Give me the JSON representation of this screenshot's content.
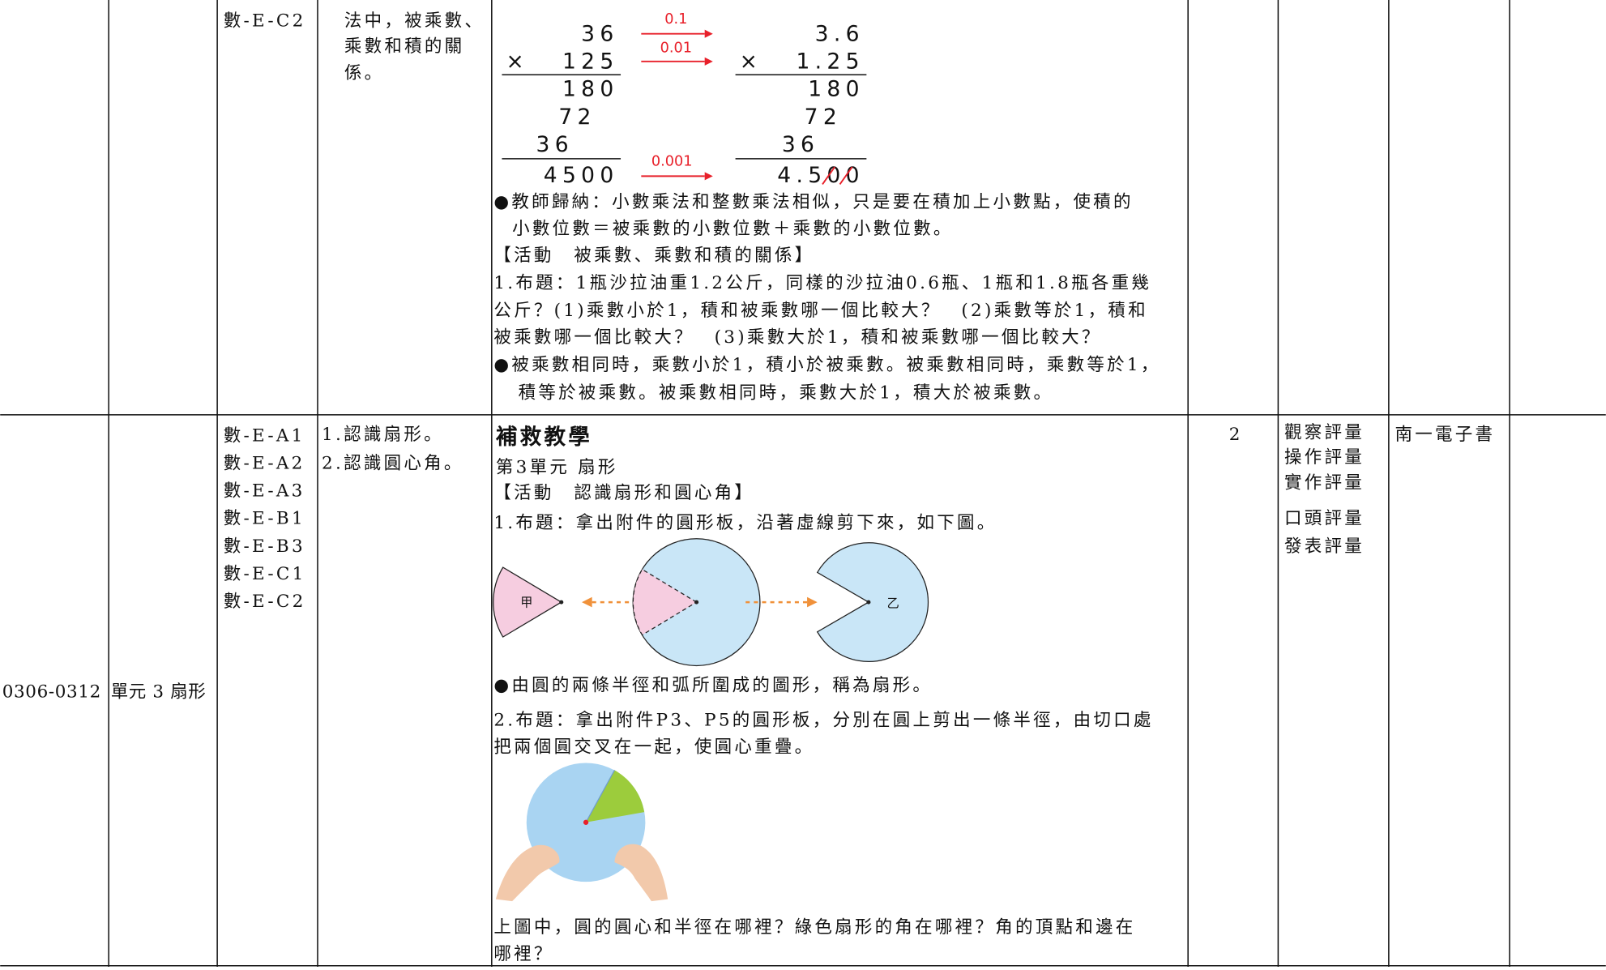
{
  "table": {
    "rows": [
      {
        "competency": "數-E-C2",
        "objective_lines": [
          "法中，被乘數、",
          "乘數和積的關",
          "係。"
        ],
        "content": {
          "multiplication": {
            "times_sign": "×",
            "left": {
              "multiplicand": "36",
              "multiplier": "125",
              "partials": [
                "180",
                "72",
                "36"
              ],
              "product": "4500"
            },
            "factors": [
              "0.1",
              "0.01",
              "0.001"
            ],
            "right": {
              "multiplicand": "3.6",
              "multiplier": "1.25",
              "partials": [
                "180",
                "72",
                "36"
              ],
              "product": "4.500"
            }
          },
          "lines": [
            "●教師歸納：小數乘法和整數乘法相似，只是要在積加上小數點，使積的",
            "小數位數＝被乘數的小數位數＋乘數的小數位數。",
            "【活動　被乘數、乘數和積的關係】",
            "1.布題：1瓶沙拉油重1.2公斤，同樣的沙拉油0.6瓶、1瓶和1.8瓶各重幾",
            "公斤？(1)乘數小於1，積和被乘數哪一個比較大？　(2)乘數等於1，積和",
            "被乘數哪一個比較大？　(3)乘數大於1，積和被乘數哪一個比較大？",
            "●被乘數相同時，乘數小於1，積小於被乘數。被乘數相同時，乘數等於1，",
            "積等於被乘數。被乘數相同時，乘數大於1，積大於被乘數。"
          ]
        }
      },
      {
        "dates": "0306-0312",
        "unit": "單元 3 扇形",
        "competencies": [
          "數-E-A1",
          "數-E-A2",
          "數-E-A3",
          "數-E-B1",
          "數-E-B3",
          "數-E-C1",
          "數-E-C2"
        ],
        "objectives": [
          "1.認識扇形。",
          "2.認識圓心角。"
        ],
        "content": {
          "title": "補救教學",
          "lines": [
            "第3單元 扇形",
            "【活動　認識扇形和圓心角】",
            "1.布題：拿出附件的圓形板，沿著虛線剪下來，如下圖。",
            "●由圓的兩條半徑和弧所圍成的圖形，稱為扇形。",
            "2.布題：拿出附件P3、P5的圓形板，分別在圓上剪出一條半徑，由切口處",
            "把兩個圓交叉在一起，使圓心重疊。",
            "上圖中，圓的圓心和半徑在哪裡？綠色扇形的角在哪裡？角的頂點和邊在",
            "哪裡？"
          ],
          "figure_labels": [
            "甲",
            "乙"
          ]
        },
        "periods": "2",
        "assessment": [
          "觀察評量",
          "操作評量",
          "實作評量",
          "口頭評量",
          "發表評量"
        ],
        "resources": "南一電子書"
      }
    ]
  }
}
